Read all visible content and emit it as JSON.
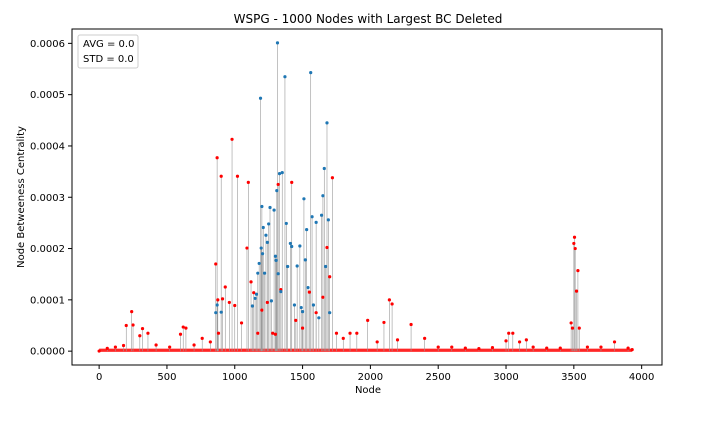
{
  "chart_data": {
    "type": "scatter",
    "title": "WSPG - 1000 Nodes with Largest BC Deleted",
    "xlabel": "Node",
    "ylabel": "Node Betweeness Centrality",
    "xlim": [
      -200,
      4150
    ],
    "ylim": [
      -2.7e-05,
      0.000628
    ],
    "x_ticks": [
      0,
      500,
      1000,
      1500,
      2000,
      2500,
      3000,
      3500,
      4000
    ],
    "x_tick_labels": [
      "0",
      "500",
      "1000",
      "1500",
      "2000",
      "2500",
      "3000",
      "3500",
      "4000"
    ],
    "y_ticks": [
      0.0,
      0.0001,
      0.0002,
      0.0003,
      0.0004,
      0.0005,
      0.0006
    ],
    "y_tick_labels": [
      "0.0000",
      "0.0001",
      "0.0002",
      "0.0003",
      "0.0004",
      "0.0005",
      "0.0006"
    ],
    "grid": false,
    "legend_placement": "top-left",
    "annotation": {
      "lines": [
        "AVG = 0.0",
        "STD = 0.0"
      ]
    },
    "colors": {
      "remaining": "#ff0000",
      "deleted": "#1f77b4",
      "stem": "#999999"
    },
    "series": [
      {
        "values": [
          [
            0,
            2e-07
          ],
          [
            60,
            5.5e-06
          ],
          [
            120,
            8e-06
          ],
          [
            180,
            1.1e-05
          ],
          [
            200,
            5e-05
          ],
          [
            240,
            7.7e-05
          ],
          [
            250,
            5.1e-05
          ],
          [
            300,
            3e-05
          ],
          [
            320,
            4.4e-05
          ],
          [
            360,
            3.5e-05
          ],
          [
            420,
            1.2e-05
          ],
          [
            520,
            8e-06
          ],
          [
            600,
            3.3e-05
          ],
          [
            620,
            4.7e-05
          ],
          [
            640,
            4.5e-05
          ],
          [
            700,
            1.2e-05
          ],
          [
            760,
            2.5e-05
          ],
          [
            820,
            1.8e-05
          ],
          [
            860,
            0.00017
          ],
          [
            870,
            0.000377
          ],
          [
            875,
            0.0001
          ],
          [
            880,
            3.5e-05
          ],
          [
            900,
            0.000341
          ],
          [
            910,
            0.000102
          ],
          [
            930,
            0.000125
          ],
          [
            960,
            9.5e-05
          ],
          [
            980,
            0.000413
          ],
          [
            1000,
            8.9e-05
          ],
          [
            1020,
            0.000341
          ],
          [
            1050,
            5.5e-05
          ],
          [
            1090,
            0.000201
          ],
          [
            1100,
            0.000329
          ],
          [
            1120,
            0.000135
          ],
          [
            1140,
            0.000114
          ],
          [
            1170,
            3.5e-05
          ],
          [
            1200,
            8e-05
          ],
          [
            1240,
            9.5e-05
          ],
          [
            1280,
            3.5e-05
          ],
          [
            1300,
            3.3e-05
          ],
          [
            1320,
            0.000325
          ],
          [
            1340,
            0.00012
          ],
          [
            1420,
            0.000329
          ],
          [
            1450,
            6e-05
          ],
          [
            1500,
            4.5e-05
          ],
          [
            1550,
            0.000115
          ],
          [
            1600,
            7.5e-05
          ],
          [
            1650,
            0.000105
          ],
          [
            1680,
            0.000202
          ],
          [
            1700,
            0.000145
          ],
          [
            1720,
            0.000338
          ],
          [
            1750,
            3.5e-05
          ],
          [
            1800,
            2.5e-05
          ],
          [
            1850,
            3.5e-05
          ],
          [
            1900,
            3.5e-05
          ],
          [
            1980,
            6e-05
          ],
          [
            2050,
            1.8e-05
          ],
          [
            2100,
            5.6e-05
          ],
          [
            2140,
            0.0001
          ],
          [
            2160,
            9.2e-05
          ],
          [
            2200,
            2.2e-05
          ],
          [
            2300,
            5.2e-05
          ],
          [
            2400,
            2.5e-05
          ],
          [
            2500,
            8e-06
          ],
          [
            2600,
            8e-06
          ],
          [
            2700,
            6e-06
          ],
          [
            2800,
            5e-06
          ],
          [
            2900,
            7e-06
          ],
          [
            3000,
            2e-05
          ],
          [
            3020,
            3.5e-05
          ],
          [
            3050,
            3.5e-05
          ],
          [
            3100,
            1.8e-05
          ],
          [
            3150,
            2.2e-05
          ],
          [
            3200,
            8e-06
          ],
          [
            3300,
            6e-06
          ],
          [
            3400,
            6e-06
          ],
          [
            3480,
            5.5e-05
          ],
          [
            3490,
            4.5e-05
          ],
          [
            3500,
            0.00021
          ],
          [
            3505,
            0.000222
          ],
          [
            3510,
            0.0002
          ],
          [
            3520,
            0.000117
          ],
          [
            3530,
            0.000157
          ],
          [
            3540,
            4.5e-05
          ],
          [
            3600,
            8e-06
          ],
          [
            3700,
            8e-06
          ],
          [
            3800,
            1.8e-05
          ],
          [
            3900,
            6e-06
          ],
          [
            3930,
            3e-06
          ]
        ]
      },
      {
        "values": [
          [
            860,
            7.5e-05
          ],
          [
            870,
            9e-05
          ],
          [
            900,
            7.6e-05
          ],
          [
            1130,
            8.8e-05
          ],
          [
            1150,
            0.000103
          ],
          [
            1160,
            0.000111
          ],
          [
            1170,
            0.000152
          ],
          [
            1180,
            0.000171
          ],
          [
            1190,
            0.000493
          ],
          [
            1195,
            0.000201
          ],
          [
            1200,
            0.000282
          ],
          [
            1205,
            0.00019
          ],
          [
            1210,
            0.000241
          ],
          [
            1220,
            0.000152
          ],
          [
            1230,
            0.000226
          ],
          [
            1240,
            0.000212
          ],
          [
            1250,
            0.000248
          ],
          [
            1260,
            0.00028
          ],
          [
            1270,
            9.8e-05
          ],
          [
            1290,
            0.000275
          ],
          [
            1300,
            0.000185
          ],
          [
            1305,
            0.000177
          ],
          [
            1310,
            0.000313
          ],
          [
            1315,
            0.000601
          ],
          [
            1320,
            0.000151
          ],
          [
            1330,
            0.000346
          ],
          [
            1340,
            0.000116
          ],
          [
            1350,
            0.000348
          ],
          [
            1370,
            0.000535
          ],
          [
            1380,
            0.000249
          ],
          [
            1390,
            0.000165
          ],
          [
            1410,
            0.00021
          ],
          [
            1420,
            0.000204
          ],
          [
            1440,
            9e-05
          ],
          [
            1460,
            0.000166
          ],
          [
            1480,
            0.000205
          ],
          [
            1490,
            8.5e-05
          ],
          [
            1500,
            7.7e-05
          ],
          [
            1510,
            0.000297
          ],
          [
            1520,
            0.000178
          ],
          [
            1530,
            0.000237
          ],
          [
            1540,
            0.000124
          ],
          [
            1560,
            0.000543
          ],
          [
            1570,
            0.000262
          ],
          [
            1580,
            9e-05
          ],
          [
            1600,
            0.000251
          ],
          [
            1620,
            6.5e-05
          ],
          [
            1640,
            0.000265
          ],
          [
            1650,
            0.000303
          ],
          [
            1660,
            0.000356
          ],
          [
            1670,
            0.000165
          ],
          [
            1680,
            0.000445
          ],
          [
            1690,
            0.000256
          ],
          [
            1700,
            7.5e-05
          ]
        ]
      }
    ]
  }
}
